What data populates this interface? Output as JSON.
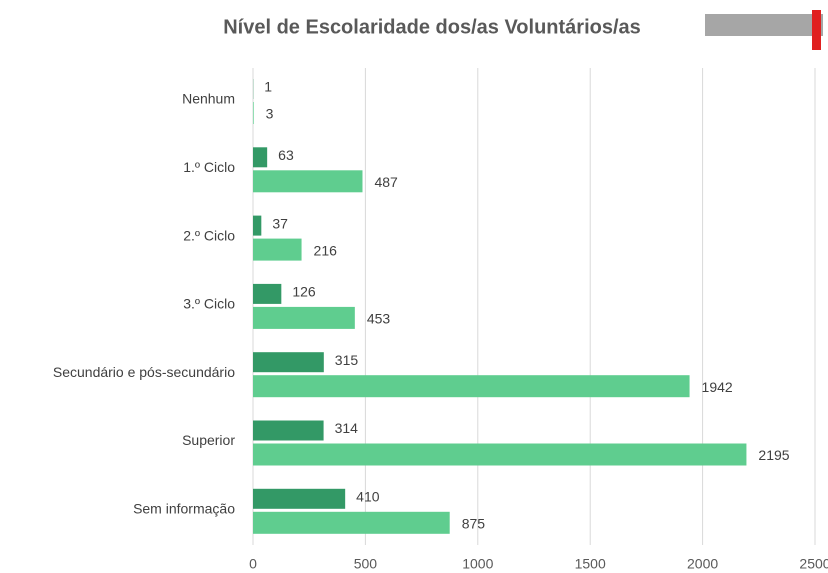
{
  "chart_data": {
    "type": "bar",
    "orientation": "horizontal",
    "title": "Nível de Escolaridade dos/as Voluntários/as",
    "categories": [
      "Nenhum",
      "1.º Ciclo",
      "2.º Ciclo",
      "3.º Ciclo",
      "Secundário e pós-secundário",
      "Superior",
      "Sem informação"
    ],
    "series": [
      {
        "color": "#339966",
        "values": [
          1,
          63,
          37,
          126,
          315,
          314,
          410
        ]
      },
      {
        "color": "#5fcd8f",
        "values": [
          3,
          487,
          216,
          453,
          1942,
          2195,
          875
        ]
      }
    ],
    "xlim": [
      0,
      2500
    ],
    "xticks": [
      0,
      500,
      1000,
      1500,
      2000,
      2500
    ],
    "grid": true
  }
}
